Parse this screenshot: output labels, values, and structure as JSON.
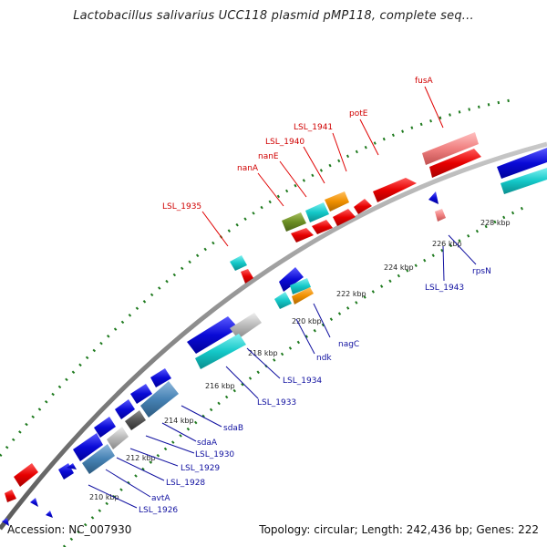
{
  "title": "Lactobacillus salivarius UCC118 plasmid pMP118, complete seq...",
  "footer": {
    "accession": "Accession: NC_007930",
    "summary": "Topology: circular; Length: 242,436 bp; Genes: 222"
  },
  "ticks": [
    "210 kbp",
    "212 kbp",
    "214 kbp",
    "216 kbp",
    "218 kbp",
    "220 kbp",
    "222 kbp",
    "224 kbp",
    "226 kbp",
    "228 kbp"
  ],
  "forward_labels": [
    "fusA",
    "potE",
    "LSL_1941",
    "LSL_1940",
    "nanE",
    "nanA",
    "LSL_1935"
  ],
  "reverse_labels": [
    "rpsN",
    "LSL_1943",
    "nagC",
    "ndk",
    "LSL_1934",
    "LSL_1933",
    "sdaB",
    "sdaA",
    "LSL_1930",
    "LSL_1929",
    "LSL_1928",
    "avtA",
    "LSL_1926"
  ],
  "colors": {
    "backbone": "#808080",
    "gc_dots": "#1e7a1e",
    "forward_gene": "#e60000",
    "reverse_gene": "#0a0ad6",
    "cyan_gene": "#14c8c8",
    "orange_gene": "#f09000",
    "steel_gene": "#4682b4",
    "grey_gene": "#b8b8b8",
    "pink_gene": "#f08080"
  }
}
